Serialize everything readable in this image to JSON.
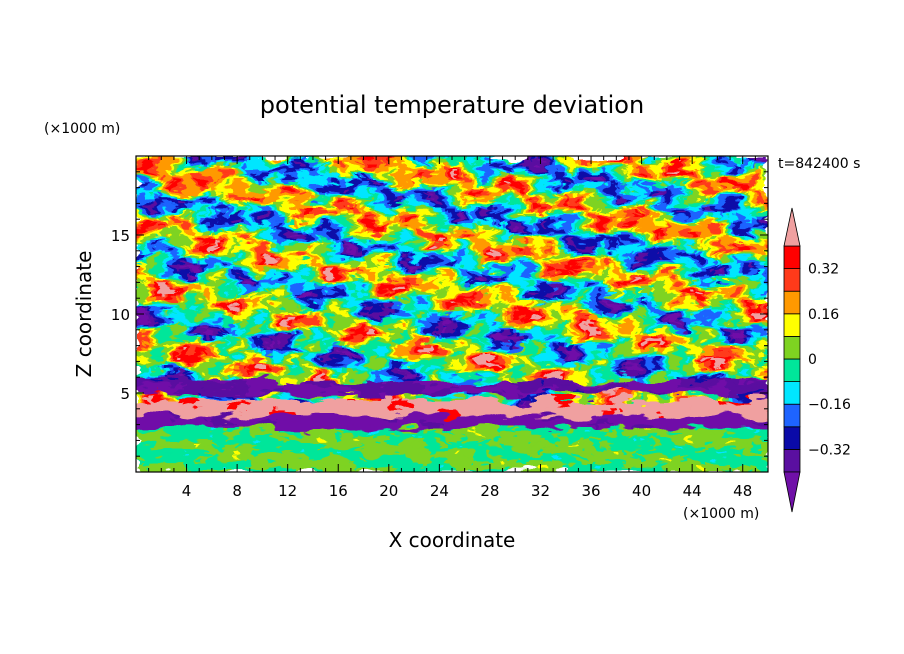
{
  "chart_data": {
    "type": "heatmap",
    "title": "potential temperature deviation",
    "xlabel": "X coordinate",
    "ylabel": "Z coordinate",
    "x_unit_label": "(×1000 m)",
    "y_unit_label": "(×1000 m)",
    "time_label": "t=842400 s",
    "xlim": [
      0,
      50
    ],
    "ylim": [
      0,
      20
    ],
    "x_ticks": [
      4,
      8,
      12,
      16,
      20,
      24,
      28,
      32,
      36,
      40,
      44,
      48
    ],
    "y_ticks": [
      5,
      10,
      15
    ],
    "colorbar": {
      "levels": [
        -0.4,
        -0.32,
        -0.24,
        -0.16,
        -0.08,
        0,
        0.08,
        0.16,
        0.24,
        0.32,
        0.4
      ],
      "labeled_levels": [
        0.32,
        0.16,
        0,
        -0.16,
        -0.32
      ],
      "tick_labels": [
        "0.32",
        "0.16",
        "0",
        "−0.16",
        "−0.32"
      ],
      "colors_low_to_high": [
        "#7010a8",
        "#5a0fa0",
        "#0a0aa8",
        "#1e64ff",
        "#00e6ff",
        "#00e69a",
        "#7ed321",
        "#ffff00",
        "#ff9900",
        "#ff3a1a",
        "#ff0000",
        "#f0a0a0"
      ],
      "extend": "both"
    },
    "notable_bands": [
      {
        "feature": "strong positive layer",
        "z_range": [
          3.6,
          4.6
        ],
        "value": 0.45
      },
      {
        "feature": "strong negative layer",
        "z_range": [
          2.9,
          3.6
        ],
        "value": -0.45
      },
      {
        "feature": "negative layer",
        "z_range": [
          5.0,
          5.8
        ],
        "value": -0.4
      },
      {
        "feature": "mixed layer",
        "z_range": [
          0,
          2.8
        ],
        "value": 0.0
      }
    ]
  }
}
